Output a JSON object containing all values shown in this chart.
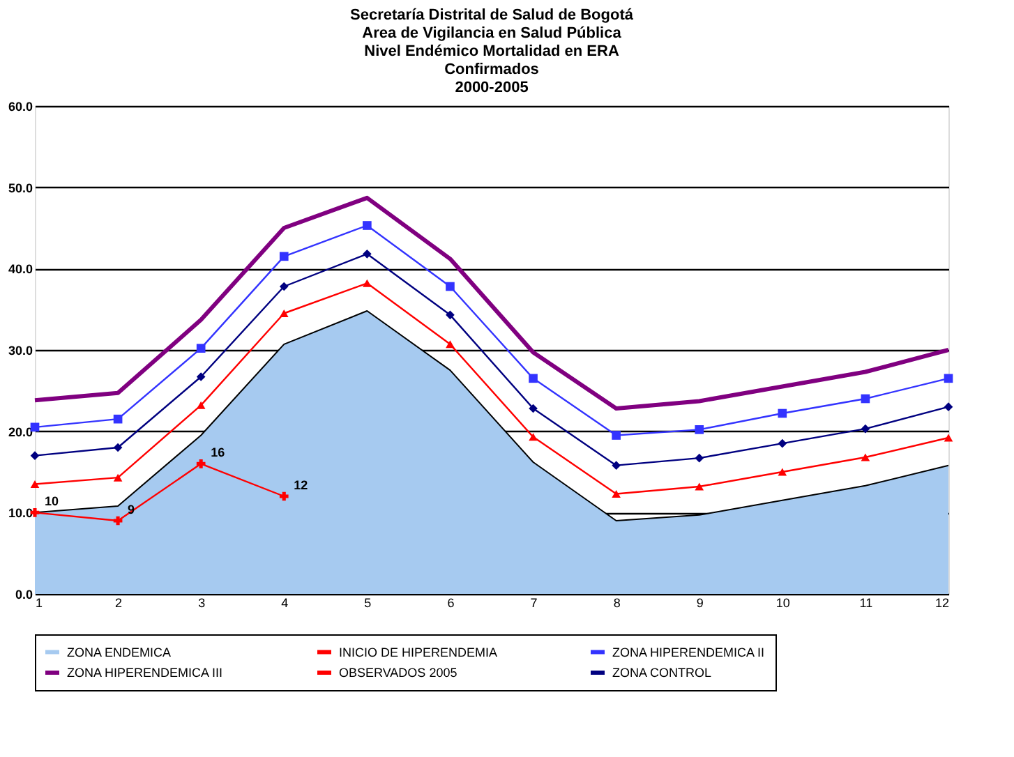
{
  "chart_data": {
    "type": "line",
    "title": "Secretaría Distrital de Salud de Bogotá\nArea de Vigilancia en Salud Pública\nNivel Endémico Mortalidad en ERA\nConfirmados\n2000-2005",
    "x": [
      1,
      2,
      3,
      4,
      5,
      6,
      7,
      8,
      9,
      10,
      11,
      12
    ],
    "xlim": [
      1,
      12
    ],
    "xticks": [
      1,
      2,
      3,
      4,
      5,
      6,
      7,
      8,
      9,
      10,
      11,
      12
    ],
    "ylim": [
      0,
      60
    ],
    "yticks": [
      {
        "value": 0,
        "label": "0.0"
      },
      {
        "value": 10,
        "label": "10.0"
      },
      {
        "value": 20,
        "label": "20.0"
      },
      {
        "value": 30,
        "label": "30.0"
      },
      {
        "value": 40,
        "label": "40.0"
      },
      {
        "value": 50,
        "label": "50.0"
      },
      {
        "value": 60,
        "label": "60.0"
      }
    ],
    "grid": "y",
    "legend": "bottom",
    "series": [
      {
        "name": "ZONA ENDEMICA",
        "type": "area",
        "color": "#a6caf0",
        "marker": "none",
        "values": [
          10,
          10.8,
          19.5,
          30.7,
          34.8,
          27.5,
          16.2,
          9,
          9.7,
          11.5,
          13.3,
          15.8
        ]
      },
      {
        "name": "INICIO DE HIPERENDEMIA",
        "color": "#ff0000",
        "marker": "triangle",
        "values": [
          13.5,
          14.3,
          23.2,
          34.5,
          38.2,
          30.7,
          19.3,
          12.3,
          13.2,
          15,
          16.8,
          19.2
        ]
      },
      {
        "name": "ZONA HIPERENDEMICA II",
        "color": "#3333ff",
        "marker": "square",
        "values": [
          20.5,
          21.5,
          30.2,
          41.5,
          45.3,
          37.8,
          26.5,
          19.5,
          20.2,
          22.2,
          24,
          26.5
        ]
      },
      {
        "name": "ZONA HIPERENDEMICA III",
        "color": "#800080",
        "marker": "none",
        "values": [
          23.8,
          24.7,
          33.7,
          45,
          48.7,
          41.2,
          29.7,
          22.8,
          23.7,
          25.5,
          27.3,
          30
        ]
      },
      {
        "name": "OBSERVADOS 2005",
        "color": "#ff0000",
        "marker": "cross",
        "values": [
          10,
          9,
          16,
          12,
          null,
          null,
          null,
          null,
          null,
          null,
          null,
          null
        ],
        "value_labels": [
          "10",
          "9",
          "16",
          "12",
          null,
          null,
          null,
          null,
          null,
          null,
          null,
          null
        ]
      },
      {
        "name": "ZONA CONTROL",
        "color": "#000080",
        "marker": "diamond",
        "values": [
          17,
          18,
          26.7,
          37.8,
          41.8,
          34.3,
          22.8,
          15.8,
          16.7,
          18.5,
          20.3,
          23
        ]
      }
    ]
  }
}
